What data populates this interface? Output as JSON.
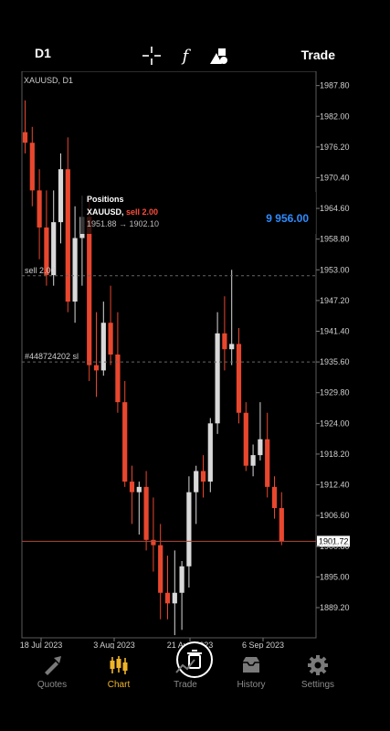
{
  "header": {
    "timeframe": "D1",
    "trade_label": "Trade",
    "icons": [
      "crosshair-icon",
      "indicator-f-icon",
      "objects-icon"
    ]
  },
  "chart_data": {
    "type": "candlestick",
    "symbol_label": "XAUUSD, D1",
    "ylim": [
      1883.5,
      1990.5
    ],
    "y_ticks": [
      "1987.80",
      "1982.00",
      "1976.20",
      "1970.40",
      "1964.60",
      "1958.80",
      "1953.00",
      "1947.20",
      "1941.40",
      "1935.60",
      "1929.80",
      "1924.00",
      "1918.20",
      "1912.40",
      "1906.60",
      "1900.80",
      "1895.00",
      "1889.20"
    ],
    "x_ticks": [
      "18 Jul 2023",
      "3 Aug 2023",
      "21 Aug 2023",
      "6 Sep 2023"
    ],
    "current_price": "1901.72",
    "current_price_value": 1901.72,
    "sell_line_label": "sell 2.00",
    "sell_line_value": 1951.88,
    "sl_line_label": "#448724202 sl",
    "sl_line_value": 1935.6,
    "bull_color": "#d9d9d9",
    "bear_color": "#e8472e",
    "candles": [
      {
        "o": 1979,
        "h": 1985,
        "l": 1975,
        "c": 1977
      },
      {
        "o": 1977,
        "h": 1980,
        "l": 1965,
        "c": 1968
      },
      {
        "o": 1968,
        "h": 1972,
        "l": 1955,
        "c": 1961
      },
      {
        "o": 1961,
        "h": 1968,
        "l": 1950,
        "c": 1952
      },
      {
        "o": 1952,
        "h": 1968,
        "l": 1950,
        "c": 1962
      },
      {
        "o": 1962,
        "h": 1975,
        "l": 1958,
        "c": 1972
      },
      {
        "o": 1972,
        "h": 1978,
        "l": 1945,
        "c": 1947
      },
      {
        "o": 1947,
        "h": 1965,
        "l": 1943,
        "c": 1959
      },
      {
        "o": 1959,
        "h": 1967,
        "l": 1950,
        "c": 1963
      },
      {
        "o": 1963,
        "h": 1966,
        "l": 1932,
        "c": 1935
      },
      {
        "o": 1935,
        "h": 1945,
        "l": 1929,
        "c": 1934
      },
      {
        "o": 1934,
        "h": 1947,
        "l": 1933,
        "c": 1943
      },
      {
        "o": 1943,
        "h": 1950,
        "l": 1935,
        "c": 1937
      },
      {
        "o": 1937,
        "h": 1945,
        "l": 1926,
        "c": 1928
      },
      {
        "o": 1928,
        "h": 1932,
        "l": 1912,
        "c": 1913
      },
      {
        "o": 1913,
        "h": 1916,
        "l": 1905,
        "c": 1911
      },
      {
        "o": 1911,
        "h": 1913,
        "l": 1903,
        "c": 1912
      },
      {
        "o": 1912,
        "h": 1915,
        "l": 1900,
        "c": 1902
      },
      {
        "o": 1902,
        "h": 1910,
        "l": 1896,
        "c": 1901
      },
      {
        "o": 1901,
        "h": 1905,
        "l": 1887,
        "c": 1892
      },
      {
        "o": 1892,
        "h": 1899,
        "l": 1887,
        "c": 1890
      },
      {
        "o": 1890,
        "h": 1900,
        "l": 1884,
        "c": 1892
      },
      {
        "o": 1892,
        "h": 1898,
        "l": 1885,
        "c": 1897
      },
      {
        "o": 1897,
        "h": 1914,
        "l": 1893,
        "c": 1911
      },
      {
        "o": 1911,
        "h": 1916,
        "l": 1905,
        "c": 1915
      },
      {
        "o": 1915,
        "h": 1918,
        "l": 1910,
        "c": 1913
      },
      {
        "o": 1913,
        "h": 1925,
        "l": 1911,
        "c": 1924
      },
      {
        "o": 1924,
        "h": 1945,
        "l": 1922,
        "c": 1941
      },
      {
        "o": 1941,
        "h": 1948,
        "l": 1934,
        "c": 1938
      },
      {
        "o": 1938,
        "h": 1953,
        "l": 1935,
        "c": 1939
      },
      {
        "o": 1939,
        "h": 1942,
        "l": 1924,
        "c": 1926
      },
      {
        "o": 1926,
        "h": 1928,
        "l": 1915,
        "c": 1916
      },
      {
        "o": 1916,
        "h": 1920,
        "l": 1914,
        "c": 1918
      },
      {
        "o": 1918,
        "h": 1928,
        "l": 1917,
        "c": 1921
      },
      {
        "o": 1921,
        "h": 1926,
        "l": 1910,
        "c": 1912
      },
      {
        "o": 1912,
        "h": 1914,
        "l": 1906,
        "c": 1908
      },
      {
        "o": 1908,
        "h": 1911,
        "l": 1901,
        "c": 1901.72
      }
    ]
  },
  "positions_popup": {
    "title": "Positions",
    "symbol": "XAUUSD",
    "side": "sell 2.00",
    "prices": "1951.88 → 1902.10",
    "profit": "9 956.00"
  },
  "tabs": [
    {
      "label": "Quotes",
      "icon": "quotes-icon",
      "active": false
    },
    {
      "label": "Chart",
      "icon": "chart-candles-icon",
      "active": true
    },
    {
      "label": "Trade",
      "icon": "trade-icon",
      "active": false
    },
    {
      "label": "History",
      "icon": "history-icon",
      "active": false
    },
    {
      "label": "Settings",
      "icon": "settings-icon",
      "active": false
    }
  ]
}
